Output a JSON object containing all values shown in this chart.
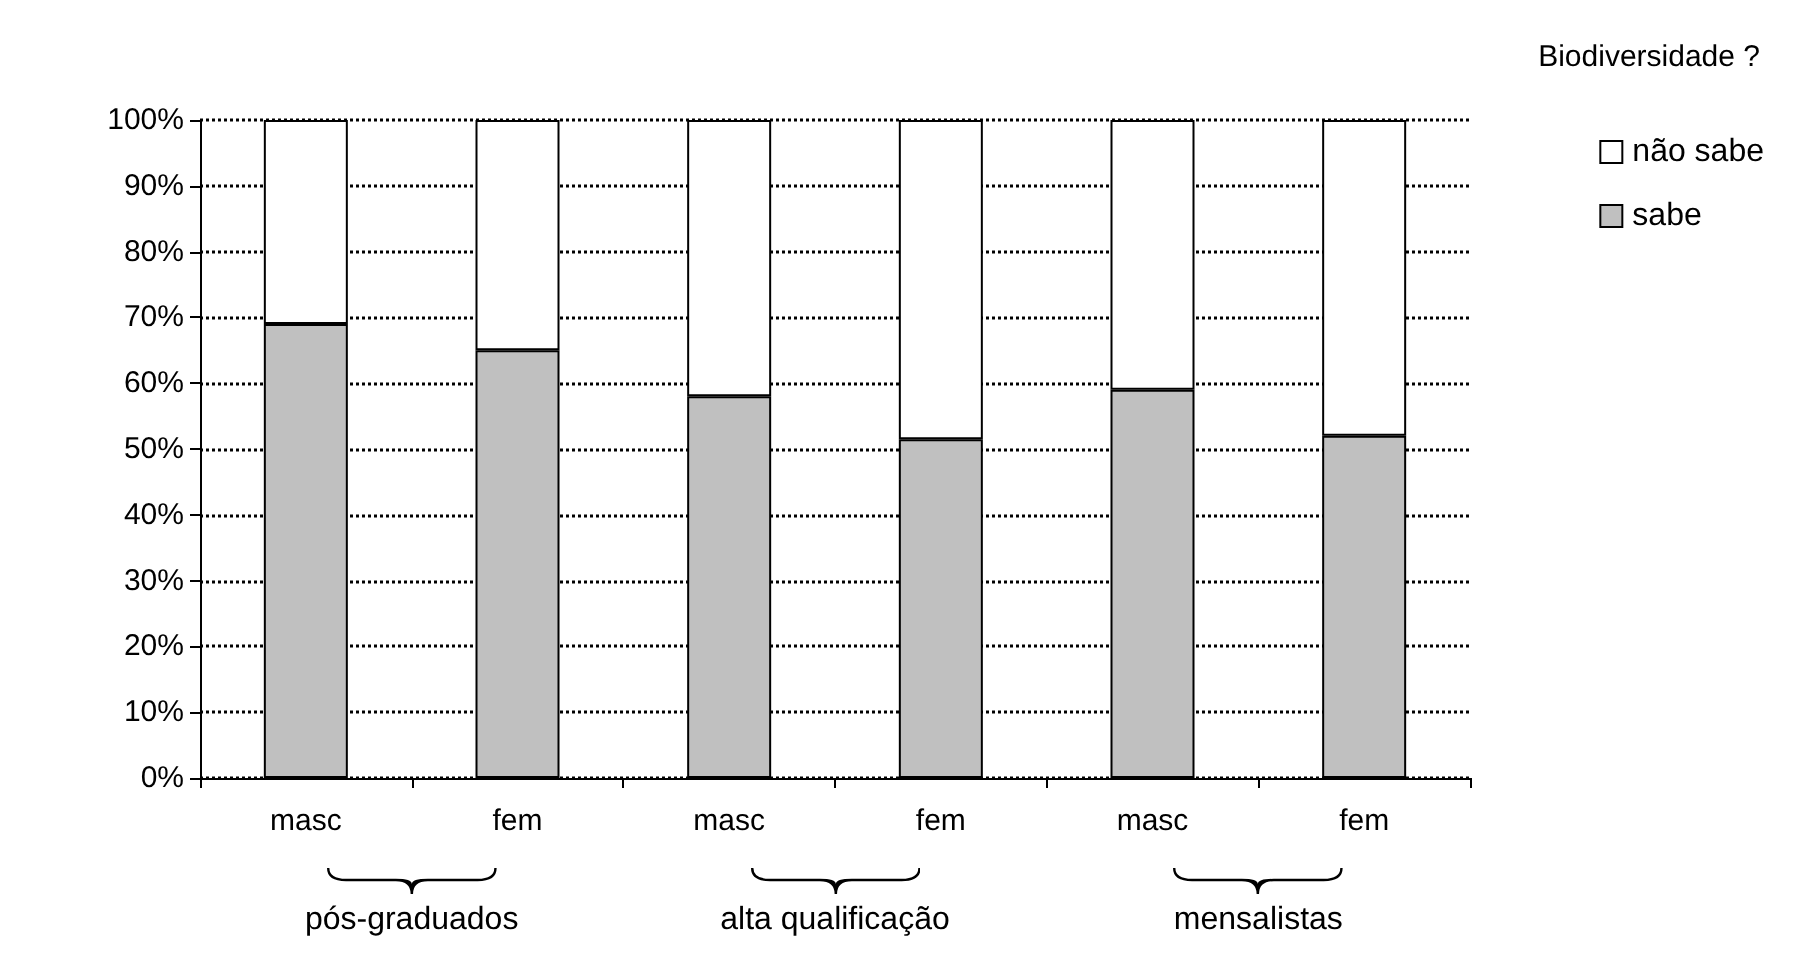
{
  "chart_data": {
    "type": "bar",
    "stacked": true,
    "legend_title": "Biodiversidade ?",
    "categories": [
      "masc",
      "fem",
      "masc",
      "fem",
      "masc",
      "fem"
    ],
    "series": [
      {
        "name": "sabe",
        "color": "#c0c0c0",
        "values": [
          69,
          65,
          58,
          51.5,
          59,
          52
        ]
      },
      {
        "name": "não sabe",
        "color": "#ffffff",
        "values": [
          31,
          35,
          42,
          48.5,
          41,
          48
        ]
      }
    ],
    "ylim": [
      0,
      100
    ],
    "yticks": [
      {
        "value": 0,
        "label": "0%"
      },
      {
        "value": 10,
        "label": "10%"
      },
      {
        "value": 20,
        "label": "20%"
      },
      {
        "value": 30,
        "label": "30%"
      },
      {
        "value": 40,
        "label": "40%"
      },
      {
        "value": 50,
        "label": "50%"
      },
      {
        "value": 60,
        "label": "60%"
      },
      {
        "value": 70,
        "label": "70%"
      },
      {
        "value": 80,
        "label": "80%"
      },
      {
        "value": 90,
        "label": "90%"
      },
      {
        "value": 100,
        "label": "100%"
      }
    ],
    "grid": "y",
    "line_style": "dotted",
    "legend": "top right",
    "annotations": [
      "pós-graduados",
      "alta qualificação",
      "mensalistas"
    ]
  }
}
